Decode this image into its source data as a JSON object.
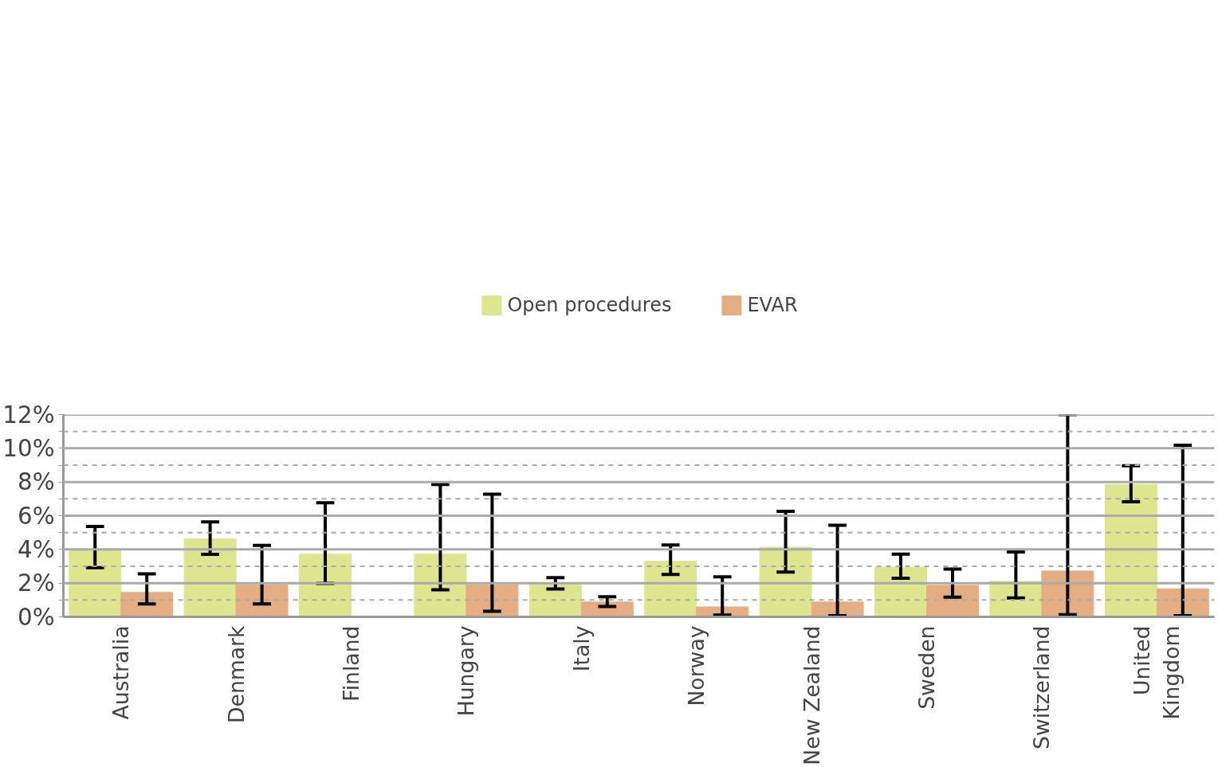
{
  "chart_data": {
    "type": "bar",
    "categories": [
      "Australia",
      "Denmark",
      "Finland",
      "Hungary",
      "Italy",
      "Norway",
      "New Zealand",
      "Sweden",
      "Switzerland",
      "United Kingdom"
    ],
    "series": [
      {
        "name": "Open procedures",
        "color": "#dde68e",
        "values": [
          4.0,
          4.62,
          3.72,
          3.72,
          2.0,
          3.3,
          4.13,
          2.94,
          2.11,
          7.85
        ],
        "errors": [
          [
            2.92,
            5.36
          ],
          [
            3.71,
            5.63
          ],
          [
            1.98,
            6.77
          ],
          [
            1.61,
            7.85
          ],
          [
            1.65,
            2.33
          ],
          [
            2.51,
            4.26
          ],
          [
            2.66,
            6.26
          ],
          [
            2.29,
            3.72
          ],
          [
            1.12,
            3.85
          ],
          [
            6.83,
            8.97
          ]
        ]
      },
      {
        "name": "EVAR",
        "color": "#e5ae82",
        "values": [
          1.45,
          1.89,
          null,
          1.89,
          0.88,
          0.59,
          0.88,
          1.87,
          2.72,
          1.67
        ],
        "errors": [
          [
            0.77,
            2.55
          ],
          [
            0.77,
            4.24
          ],
          null,
          [
            0.33,
            7.27
          ],
          [
            0.62,
            1.19
          ],
          [
            0.11,
            2.37
          ],
          [
            0.07,
            5.43
          ],
          [
            1.17,
            2.84
          ],
          [
            0.13,
            12
          ],
          [
            0.07,
            10.18
          ]
        ]
      }
    ],
    "ylim": [
      0,
      12
    ],
    "yticks": [
      {
        "value": 0,
        "label": "0%"
      },
      {
        "value": 1,
        "label": null
      },
      {
        "value": 2,
        "label": "2%"
      },
      {
        "value": 3,
        "label": null
      },
      {
        "value": 4,
        "label": "4%"
      },
      {
        "value": 5,
        "label": null
      },
      {
        "value": 6,
        "label": "6%"
      },
      {
        "value": 7,
        "label": null
      },
      {
        "value": 8,
        "label": "8%"
      },
      {
        "value": 9,
        "label": null
      },
      {
        "value": 10,
        "label": "10%"
      },
      {
        "value": 11,
        "label": null
      },
      {
        "value": 12,
        "label": "12%"
      }
    ],
    "grid": "y",
    "legend": "top"
  }
}
